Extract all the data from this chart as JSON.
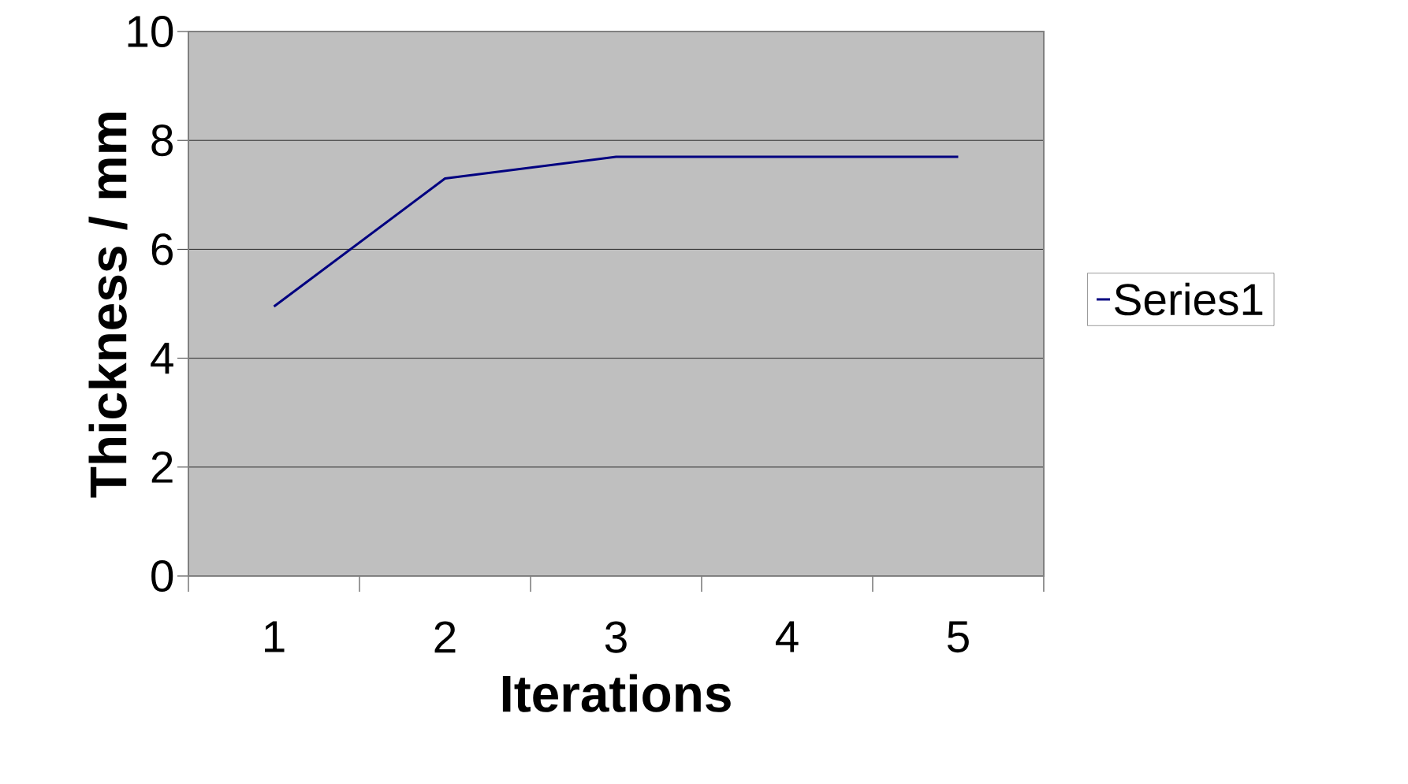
{
  "chart_data": {
    "type": "line",
    "xlabel": "Iterations",
    "ylabel": "Thickness / mm",
    "categories": [
      "1",
      "2",
      "3",
      "4",
      "5"
    ],
    "series": [
      {
        "name": "Series1",
        "color": "#000080",
        "values": [
          4.95,
          7.3,
          7.7,
          7.7,
          7.7
        ]
      }
    ],
    "ylim": [
      0,
      10
    ],
    "yticks": [
      0,
      2,
      4,
      6,
      8,
      10
    ],
    "grid": "y",
    "legend": "right",
    "marker": "none",
    "line_style": "solid"
  }
}
